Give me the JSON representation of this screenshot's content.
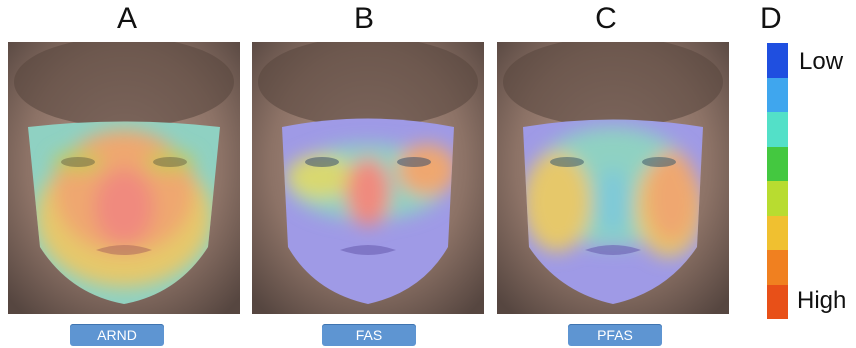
{
  "panels": [
    {
      "letter": "A",
      "label": "ARND"
    },
    {
      "letter": "B",
      "label": "FAS"
    },
    {
      "letter": "C",
      "label": "PFAS"
    }
  ],
  "legend": {
    "letter": "D",
    "low_label": "Low",
    "high_label": "High",
    "scale_colors": [
      "#1f4fe0",
      "#3fa6ee",
      "#53e0c8",
      "#44c840",
      "#b8dc30",
      "#f0c030",
      "#f08020",
      "#e85018"
    ]
  }
}
